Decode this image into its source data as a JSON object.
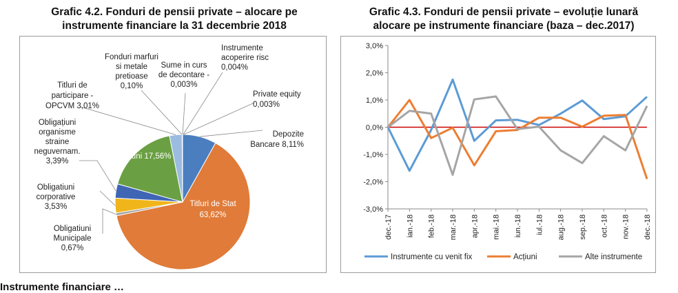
{
  "page": {
    "left_title_line1": "Grafic 4.2. Fonduri de pensii private – alocare pe",
    "left_title_line2": "instrumente financiare la 31 decembrie 2018",
    "right_title_line1": "Grafic 4.3. Fonduri de pensii private – evoluție lunară",
    "right_title_line2": "alocare pe instrumente financiare (baza – dec.2017)",
    "bottom_text": "Instrumente financiare …"
  },
  "chart_data": [
    {
      "type": "pie",
      "title": "Grafic 4.2. Fonduri de pensii private – alocare pe instrumente financiare la 31 decembrie 2018",
      "slices": [
        {
          "name": "Depozite Bancare",
          "value": 8.11,
          "label": "8,11%",
          "color": "#4a7ebf"
        },
        {
          "name": "Titluri de Stat",
          "value": 63.62,
          "label": "63,62%",
          "color": "#e07b39"
        },
        {
          "name": "Obligațiuni Municipale",
          "value": 0.67,
          "label": "0,67%",
          "color": "#a5a5a5"
        },
        {
          "name": "Obligațiuni corporative",
          "value": 3.53,
          "label": "3,53%",
          "color": "#f0b51b"
        },
        {
          "name": "Obligațiuni organisme straine neguvernam.",
          "value": 3.39,
          "label": "3,39%",
          "color": "#3f65b5"
        },
        {
          "name": "Acțiuni",
          "value": 17.56,
          "label": "17,56%",
          "color": "#6aa043"
        },
        {
          "name": "Titluri de participare - OPCVM",
          "value": 3.01,
          "label": "3,01%",
          "color": "#9bbbe0"
        },
        {
          "name": "Fonduri marfuri si metale pretioase",
          "value": 0.1,
          "label": "0,10%",
          "color": "#c0c0c0"
        },
        {
          "name": "Sume in curs de decontare",
          "value": 0.003,
          "label": "0,003%",
          "color": "#cccccc"
        },
        {
          "name": "Instrumente acoperire risc",
          "value": 0.004,
          "label": "0,004%",
          "color": "#cccccc"
        },
        {
          "name": "Private equity",
          "value": 0.003,
          "label": "0,003%",
          "color": "#cccccc"
        }
      ],
      "labels": {
        "depozite": [
          "Depozite",
          "Bancare 8,11%"
        ],
        "titluri_stat": [
          "Titluri de Stat",
          "63,62%"
        ],
        "municipale": [
          "Obligatiuni",
          "Municipale",
          "0,67%"
        ],
        "corporative": [
          "Obligatiuni",
          "corporative",
          "3,53%"
        ],
        "straine": [
          "Obligațiuni",
          "organisme",
          "straine",
          "neguvernam.",
          "3,39%"
        ],
        "actiuni": [
          "Acțiuni 17,56%"
        ],
        "opcvm": [
          "Titluri de",
          "participare -",
          "OPCVM 3,01%"
        ],
        "marfuri": [
          "Fonduri marfuri",
          "si metale",
          "pretioase",
          "0,10%"
        ],
        "sume": [
          "Sume in curs",
          "de decontare -",
          "0,003%"
        ],
        "instrumente_risc": [
          "Instrumente",
          "acoperire risc",
          "0,004%"
        ],
        "private_equity": [
          "Private equity",
          "0,003%"
        ]
      }
    },
    {
      "type": "line",
      "title": "Grafic 4.3. Fonduri de pensii private – evoluție lunară alocare pe instrumente financiare (baza – dec.2017)",
      "categories": [
        "dec.-17",
        "ian.-18",
        "feb.-18",
        "mar.-18",
        "apr.-18",
        "mai.-18",
        "iun.-18",
        "iul.-18",
        "aug.-18",
        "sep.-18",
        "oct.-18",
        "nov.-18",
        "dec.-18"
      ],
      "ylim": [
        -3.0,
        3.0
      ],
      "yticks": [
        3.0,
        2.0,
        1.0,
        0.0,
        -1.0,
        -2.0,
        -3.0
      ],
      "ytick_labels": [
        "3,0%",
        "2,0%",
        "1,0%",
        "0,0%",
        "-1,0%",
        "-2,0%",
        "-3,0%"
      ],
      "baseline_color": "#cc0000",
      "series": [
        {
          "name": "Instrumente cu venit fix",
          "color": "#5b9bd5",
          "values": [
            0.0,
            -1.6,
            -0.1,
            1.75,
            -0.5,
            0.25,
            0.27,
            0.08,
            0.5,
            0.98,
            0.3,
            0.4,
            1.12
          ]
        },
        {
          "name": "Acțiuni",
          "color": "#ed7d31",
          "values": [
            0.0,
            1.0,
            -0.4,
            -0.02,
            -1.4,
            -0.15,
            -0.1,
            0.35,
            0.35,
            0.02,
            0.42,
            0.45,
            -1.9
          ]
        },
        {
          "name": "Alte instrumente",
          "color": "#a5a5a5",
          "values": [
            0.0,
            0.6,
            0.5,
            -1.75,
            1.02,
            1.13,
            -0.07,
            0.02,
            -0.85,
            -1.32,
            -0.33,
            -0.85,
            0.78
          ]
        }
      ]
    }
  ]
}
